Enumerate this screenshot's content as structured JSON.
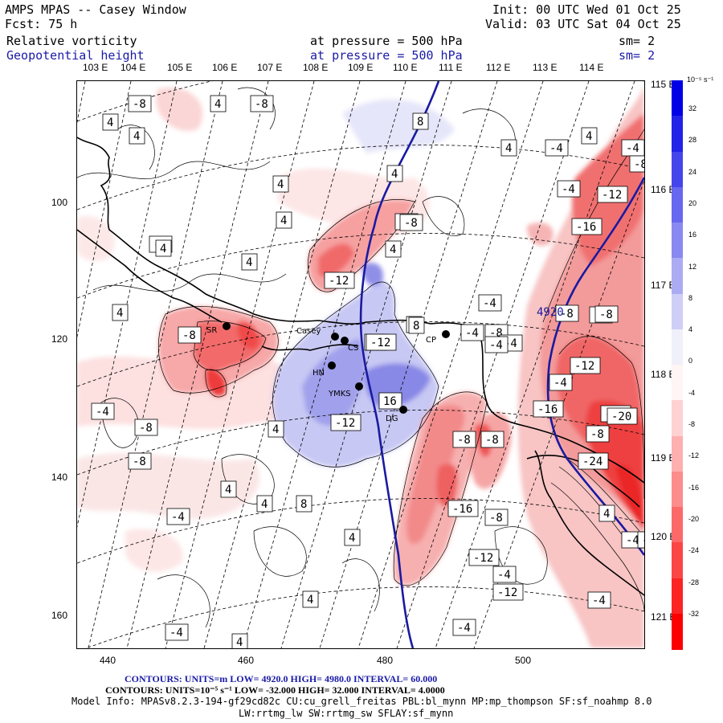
{
  "header": {
    "title": "AMPS MPAS -- Casey Window",
    "init": "Init: 00 UTC Wed 01 Oct 25",
    "fcst": "Fcst:    75 h",
    "valid": "Valid: 03 UTC Sat 04 Oct 25",
    "field1": {
      "name": "Relative vorticity",
      "pressure": "at pressure =  500 hPa",
      "sm": "sm= 2"
    },
    "field2": {
      "name": "Geopotential height",
      "pressure": "at pressure =  500 hPa",
      "sm": "sm= 2"
    }
  },
  "lon_labels_top": [
    "103 E",
    "104 E",
    "105 E",
    "106 E",
    "107 E",
    "108 E",
    "109 E",
    "110 E",
    "111 E",
    "112 E",
    "113 E",
    "114 E"
  ],
  "lon_labels_right": [
    "115 E",
    "116 E",
    "117 E",
    "118 E",
    "119 E",
    "120 E",
    "121 E"
  ],
  "y_ticks": [
    "100",
    "120",
    "140",
    "160"
  ],
  "x_ticks": [
    "440",
    "460",
    "480",
    "500"
  ],
  "stations": [
    {
      "id": "SR"
    },
    {
      "id": "Casey"
    },
    {
      "id": "CS"
    },
    {
      "id": "HN"
    },
    {
      "id": "YMKS"
    },
    {
      "id": "DG"
    },
    {
      "id": "CP"
    }
  ],
  "contour_labels": [
    "-8",
    "4",
    "-8",
    "4",
    "4",
    "4",
    "8",
    "4",
    "4",
    "-4",
    "4",
    "-4",
    "-8",
    "-12",
    "-4",
    "-16",
    "-8",
    "4",
    "-4",
    "-8",
    "4",
    "-12",
    "4",
    "4",
    "-4",
    "4",
    "-8",
    "8",
    "-4",
    "-12",
    "-8",
    "-8",
    "12",
    "-12",
    "-4",
    "-8",
    "-4",
    "-16",
    "-4",
    "-8",
    "8",
    "-12",
    "-20",
    "-8",
    "4",
    "16",
    "-4",
    "-12",
    "-8",
    "-8",
    "-8",
    "-8",
    "-24",
    "4",
    "4",
    "8",
    "-4",
    "4",
    "-16",
    "-8",
    "4",
    "-4",
    "-12",
    "-4",
    "-12",
    "4",
    "-4",
    "-4",
    "4",
    "-4",
    "-8"
  ],
  "height_label": "4920",
  "colorbar": {
    "unit": "10⁻⁵ s⁻¹",
    "labels": [
      "32",
      "28",
      "24",
      "20",
      "16",
      "12",
      "8",
      "4",
      "0",
      "-4",
      "-8",
      "-12",
      "-16",
      "-20",
      "-24",
      "-28",
      "-32"
    ],
    "colors_top": "#0000e6",
    "colors_bottom": "#ff0000"
  },
  "footer": {
    "line1": "CONTOURS:  UNITS=m  LOW=  4920.0          HIGH=  4980.0          INTERVAL=    60.000",
    "line2": "CONTOURS:  UNITS=10⁻⁵ s⁻¹  LOW=  -32.000          HIGH=  32.000          INTERVAL=    4.0000",
    "line3": "Model Info: MPASv8.2.3-194-gf29cd82c CU:cu_grell_freitas PBL:bl_mynn MP:mp_thompson SF:sf_noahmp 8.0",
    "line4": "LW:rrtmg_lw SW:rrtmg_sw SFLAY:sf_mynn"
  }
}
